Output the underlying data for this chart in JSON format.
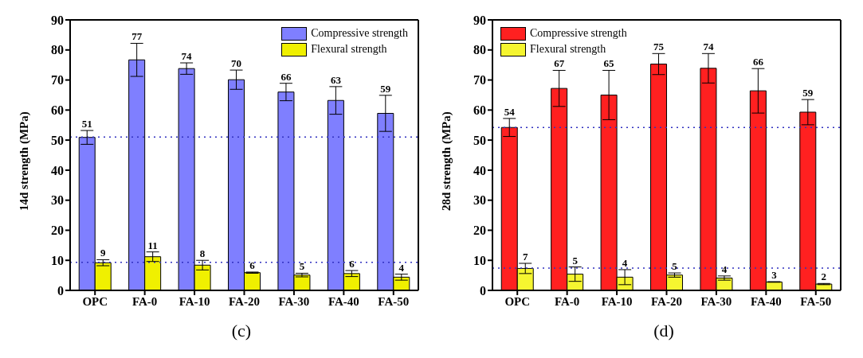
{
  "chart_data": [
    {
      "type": "bar",
      "ylabel": "14d strength (MPa)",
      "annotations": [
        "(c)"
      ],
      "categories": [
        "OPC",
        "FA-0",
        "FA-10",
        "FA-20",
        "FA-30",
        "FA-40",
        "FA-50"
      ],
      "ylim": [
        0,
        90
      ],
      "yticks": [
        0,
        10,
        20,
        30,
        40,
        50,
        60,
        70,
        80,
        90
      ],
      "legend": "top right",
      "series": [
        {
          "name": "Compressive strength",
          "color": "#7f7fff",
          "values": [
            50.9,
            76.7,
            73.8,
            70.1,
            66.0,
            63.2,
            58.9
          ],
          "errors": [
            2.3,
            5.5,
            1.9,
            3.2,
            2.9,
            4.6,
            6.0
          ],
          "value_labels": [
            "51",
            "77",
            "74",
            "70",
            "66",
            "63",
            "59"
          ]
        },
        {
          "name": "Flexural strength",
          "color": "#f0f000",
          "values": [
            9.2,
            11.2,
            8.4,
            5.9,
            5.1,
            5.6,
            4.4
          ],
          "errors": [
            1.0,
            1.6,
            1.6,
            0.2,
            0.6,
            1.0,
            1.0
          ],
          "value_labels": [
            "9",
            "11",
            "8",
            "6",
            "5",
            "6",
            "4"
          ]
        }
      ],
      "ref_lines": [
        {
          "axis": "y",
          "value": 51,
          "color": "#3030c0",
          "line_style": "dotted"
        },
        {
          "axis": "y",
          "value": 9.3,
          "color": "#3030c0",
          "line_style": "dotted"
        }
      ]
    },
    {
      "type": "bar",
      "ylabel": "28d strength (MPa)",
      "annotations": [
        "(d)"
      ],
      "categories": [
        "OPC",
        "FA-0",
        "FA-10",
        "FA-20",
        "FA-30",
        "FA-40",
        "FA-50"
      ],
      "ylim": [
        0,
        90
      ],
      "yticks": [
        0,
        10,
        20,
        30,
        40,
        50,
        60,
        70,
        80,
        90
      ],
      "legend": "top left",
      "series": [
        {
          "name": "Compressive strength",
          "color": "#ff2020",
          "values": [
            54.2,
            67.2,
            65.0,
            75.3,
            73.9,
            66.4,
            59.3
          ],
          "errors": [
            3.0,
            6.0,
            8.2,
            3.5,
            4.9,
            7.4,
            4.2
          ],
          "value_labels": [
            "54",
            "67",
            "65",
            "75",
            "74",
            "66",
            "59"
          ]
        },
        {
          "name": "Flexural strength",
          "color": "#f5f530",
          "values": [
            7.3,
            5.4,
            4.4,
            5.1,
            4.1,
            2.8,
            2.1
          ],
          "errors": [
            1.7,
            2.4,
            2.5,
            0.7,
            0.7,
            0.1,
            0.2
          ],
          "value_labels": [
            "7",
            "5",
            "4",
            "5",
            "4",
            "3",
            "2"
          ]
        }
      ],
      "ref_lines": [
        {
          "axis": "y",
          "value": 54.2,
          "color": "#3030c0",
          "line_style": "dotted"
        },
        {
          "axis": "y",
          "value": 7.4,
          "color": "#3030c0",
          "line_style": "dotted"
        }
      ]
    }
  ]
}
